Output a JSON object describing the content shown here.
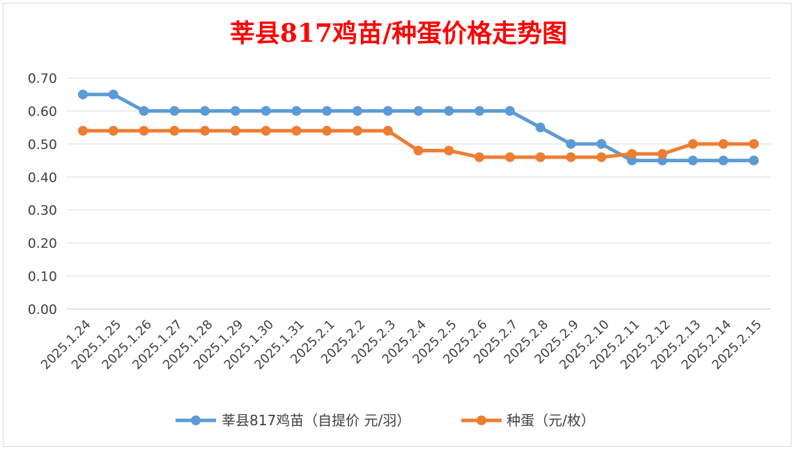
{
  "chart_data": {
    "type": "line",
    "title": "莘县817鸡苗/种蛋价格走势图",
    "categories": [
      "2025.1.24",
      "2025.1.25",
      "2025.1.26",
      "2025.1.27",
      "2025.1.28",
      "2025.1.29",
      "2025.1.30",
      "2025.1.31",
      "2025.2.1",
      "2025.2.2",
      "2025.2.3",
      "2025.2.4",
      "2025.2.5",
      "2025.2.6",
      "2025.2.7",
      "2025.2.8",
      "2025.2.9",
      "2025.2.10",
      "2025.2.11",
      "2025.2.12",
      "2025.2.13",
      "2025.2.14",
      "2025.2.15"
    ],
    "series": [
      {
        "name": "莘县817鸡苗（自提价 元/羽）",
        "color": "#5b9bd5",
        "values": [
          0.65,
          0.65,
          0.6,
          0.6,
          0.6,
          0.6,
          0.6,
          0.6,
          0.6,
          0.6,
          0.6,
          0.6,
          0.6,
          0.6,
          0.6,
          0.55,
          0.5,
          0.5,
          0.45,
          0.45,
          0.45,
          0.45,
          0.45
        ]
      },
      {
        "name": "种蛋（元/枚）",
        "color": "#ed7d31",
        "values": [
          0.54,
          0.54,
          0.54,
          0.54,
          0.54,
          0.54,
          0.54,
          0.54,
          0.54,
          0.54,
          0.54,
          0.48,
          0.48,
          0.46,
          0.46,
          0.46,
          0.46,
          0.46,
          0.47,
          0.47,
          0.5,
          0.5,
          0.5
        ]
      }
    ],
    "ylim": [
      0,
      0.7
    ],
    "yticks": [
      "0.00",
      "0.10",
      "0.20",
      "0.30",
      "0.40",
      "0.50",
      "0.60",
      "0.70"
    ],
    "grid": true,
    "legend_position": "bottom"
  }
}
